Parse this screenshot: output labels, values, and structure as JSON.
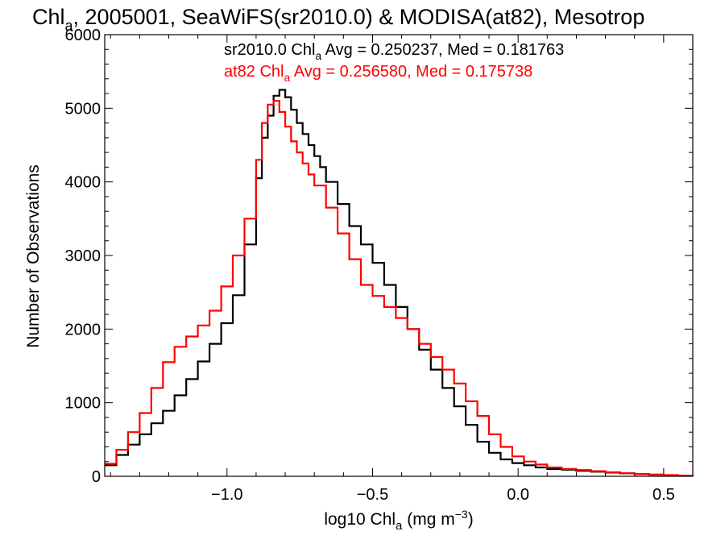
{
  "chart_data": {
    "type": "line",
    "step": true,
    "title_parts": {
      "main": "Chl",
      "sub": "a",
      "rest": ", 2005001, SeaWiFS(sr2010.0) & MODISA(at82), Mesotrop"
    },
    "xlabel_parts": {
      "main": "log10 Chl",
      "sub": "a",
      "rest": " (mg m",
      "sup": "−3",
      "end": ")"
    },
    "ylabel": "Number of Observations",
    "xlim": [
      -1.42,
      0.6
    ],
    "ylim": [
      0,
      6000
    ],
    "xticks": [
      -1.0,
      -0.5,
      0.0,
      0.5
    ],
    "xtick_labels": [
      "−1.0",
      "−0.5",
      "0.0",
      "0.5"
    ],
    "yticks": [
      0,
      1000,
      2000,
      3000,
      4000,
      5000,
      6000
    ],
    "ytick_labels": [
      "0",
      "1000",
      "2000",
      "3000",
      "4000",
      "5000",
      "6000"
    ],
    "annotations": [
      {
        "pre": "sr2010.0 Chl",
        "sub": "a",
        "post": " Avg = 0.250237, Med = 0.181763",
        "color": "#000000"
      },
      {
        "pre": "at82 Chl",
        "sub": "a",
        "post": " Avg = 0.256580, Med = 0.175738",
        "color": "#ff0000"
      }
    ],
    "series": [
      {
        "color": "#000000",
        "x": [
          -1.42,
          -1.38,
          -1.34,
          -1.3,
          -1.26,
          -1.22,
          -1.18,
          -1.14,
          -1.1,
          -1.06,
          -1.02,
          -0.98,
          -0.94,
          -0.9,
          -0.88,
          -0.86,
          -0.84,
          -0.82,
          -0.8,
          -0.78,
          -0.76,
          -0.74,
          -0.72,
          -0.7,
          -0.68,
          -0.66,
          -0.62,
          -0.58,
          -0.54,
          -0.5,
          -0.46,
          -0.42,
          -0.38,
          -0.34,
          -0.3,
          -0.26,
          -0.22,
          -0.18,
          -0.14,
          -0.1,
          -0.06,
          -0.02,
          0.02,
          0.06,
          0.1,
          0.15,
          0.2,
          0.25,
          0.3,
          0.35,
          0.4,
          0.45,
          0.5,
          0.55,
          0.6
        ],
        "y": [
          150,
          290,
          430,
          570,
          720,
          890,
          1100,
          1320,
          1560,
          1800,
          2080,
          2460,
          3150,
          4050,
          4600,
          4900,
          5170,
          5250,
          5150,
          4980,
          4800,
          4650,
          4500,
          4350,
          4200,
          4000,
          3700,
          3400,
          3150,
          2900,
          2600,
          2300,
          2000,
          1720,
          1450,
          1200,
          950,
          700,
          470,
          320,
          230,
          180,
          150,
          120,
          100,
          90,
          75,
          62,
          50,
          40,
          30,
          22,
          15,
          10,
          5
        ]
      },
      {
        "color": "#ff0000",
        "x": [
          -1.42,
          -1.38,
          -1.34,
          -1.3,
          -1.26,
          -1.22,
          -1.18,
          -1.14,
          -1.1,
          -1.06,
          -1.02,
          -0.98,
          -0.94,
          -0.9,
          -0.88,
          -0.86,
          -0.84,
          -0.82,
          -0.8,
          -0.78,
          -0.76,
          -0.74,
          -0.72,
          -0.7,
          -0.66,
          -0.62,
          -0.58,
          -0.54,
          -0.5,
          -0.46,
          -0.42,
          -0.38,
          -0.34,
          -0.3,
          -0.26,
          -0.22,
          -0.18,
          -0.14,
          -0.1,
          -0.06,
          -0.02,
          0.02,
          0.06,
          0.1,
          0.15,
          0.2,
          0.25,
          0.3,
          0.35,
          0.4,
          0.45,
          0.5,
          0.55,
          0.6
        ],
        "y": [
          170,
          360,
          600,
          860,
          1200,
          1550,
          1760,
          1900,
          2050,
          2250,
          2580,
          3000,
          3500,
          4300,
          4800,
          5050,
          5100,
          4950,
          4750,
          4550,
          4400,
          4250,
          4100,
          3950,
          3650,
          3300,
          2950,
          2600,
          2450,
          2300,
          2150,
          2000,
          1800,
          1620,
          1450,
          1260,
          1020,
          820,
          570,
          400,
          270,
          200,
          160,
          120,
          100,
          85,
          70,
          55,
          42,
          32,
          24,
          16,
          10,
          5
        ]
      }
    ]
  }
}
